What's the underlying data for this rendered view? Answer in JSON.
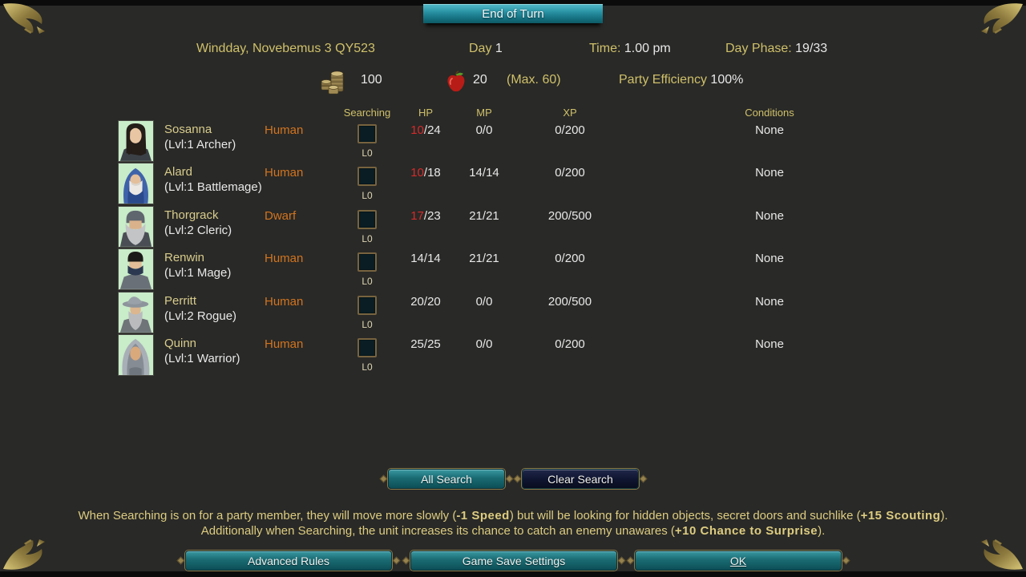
{
  "banner": {
    "title": "End of Turn"
  },
  "status_bar": {
    "date": "Windday, Novebemus 3 QY523",
    "day_label": "Day ",
    "day_value": "1",
    "time_label": "Time: ",
    "time_value": "1.00 pm",
    "phase_label": "Day Phase: ",
    "phase_value": "19/33"
  },
  "resources": {
    "gold_icon": "coin-stack-icon",
    "gold_value": "100",
    "food_icon": "apple-icon",
    "food_value": "20",
    "food_max": "(Max. 60)",
    "efficiency_label": "Party Efficiency ",
    "efficiency_value": "100%"
  },
  "table": {
    "headers": {
      "searching": "Searching",
      "hp": "HP",
      "mp": "MP",
      "xp": "XP",
      "conditions": "Conditions"
    },
    "members": [
      {
        "name": "Sosanna",
        "level_class": "(Lvl:1 Archer)",
        "race": "Human",
        "search_level": "L0",
        "hp_current": "10",
        "hp_rest": "/24",
        "hp_low": true,
        "mp": "0/0",
        "xp": "0/200",
        "conditions": "None",
        "portrait": "sosanna"
      },
      {
        "name": "Alard",
        "level_class": "(Lvl:1 Battlemage)",
        "race": "Human",
        "search_level": "L0",
        "hp_current": "10",
        "hp_rest": "/18",
        "hp_low": true,
        "mp": "14/14",
        "xp": "0/200",
        "conditions": "None",
        "portrait": "alard"
      },
      {
        "name": "Thorgrack",
        "level_class": "(Lvl:2 Cleric)",
        "race": "Dwarf",
        "search_level": "L0",
        "hp_current": "17",
        "hp_rest": "/23",
        "hp_low": true,
        "mp": "21/21",
        "xp": "200/500",
        "conditions": "None",
        "portrait": "thorgrack"
      },
      {
        "name": "Renwin",
        "level_class": "(Lvl:1 Mage)",
        "race": "Human",
        "search_level": "L0",
        "hp_current": "14",
        "hp_rest": "/14",
        "hp_low": false,
        "mp": "21/21",
        "xp": "0/200",
        "conditions": "None",
        "portrait": "renwin"
      },
      {
        "name": "Perritt",
        "level_class": "(Lvl:2 Rogue)",
        "race": "Human",
        "search_level": "L0",
        "hp_current": "20",
        "hp_rest": "/20",
        "hp_low": false,
        "mp": "0/0",
        "xp": "200/500",
        "conditions": "None",
        "portrait": "perritt"
      },
      {
        "name": "Quinn",
        "level_class": "(Lvl:1 Warrior)",
        "race": "Human",
        "search_level": "L0",
        "hp_current": "25",
        "hp_rest": "/25",
        "hp_low": false,
        "mp": "0/0",
        "xp": "0/200",
        "conditions": "None",
        "portrait": "quinn"
      }
    ]
  },
  "search_buttons": {
    "all": "All Search",
    "clear": "Clear Search"
  },
  "info": {
    "line1": [
      {
        "text": "When Searching is on for a party member, they will move more slowly (",
        "bold": false
      },
      {
        "text": "-1 Speed",
        "bold": true
      },
      {
        "text": ") but will be looking for hidden objects, secret doors and suchlike (",
        "bold": false
      },
      {
        "text": "+15 Scouting",
        "bold": true
      },
      {
        "text": ").",
        "bold": false
      }
    ],
    "line2": [
      {
        "text": "Additionally when Searching, the unit increases its chance to catch an enemy unawares (",
        "bold": false
      },
      {
        "text": "+10 Chance to Surprise",
        "bold": true
      },
      {
        "text": ").",
        "bold": false
      }
    ]
  },
  "footer_buttons": {
    "advanced": "Advanced Rules",
    "save": "Game Save Settings",
    "ok": "OK"
  },
  "decorations": {
    "corner": "gold-flourish-icon"
  },
  "colors": {
    "background": "#292927",
    "gold_text": "#cfc06a",
    "orange_race": "#d2741f",
    "hp_low": "#d42b2b",
    "button_teal": "#1a6b73",
    "button_dark": "#101631",
    "ribbon_teal": "#2a93a5",
    "edge_strip": "#0b0b0b"
  }
}
